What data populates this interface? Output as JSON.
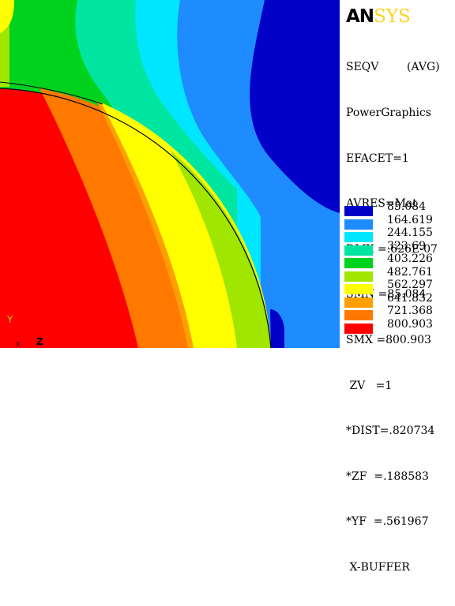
{
  "logo": {
    "brand_an": "AN",
    "brand_sys": "SYS"
  },
  "info_lines": [
    "SEQV        (AVG)",
    "PowerGraphics",
    "EFACET=1",
    "AVRES=Mat",
    "DMX =.626E-07",
    "SMN =85.084",
    "SMX =800.903"
  ],
  "view_lines": [
    " ZV   =1",
    "*DIST=.820734",
    "*ZF  =.188583",
    "*YF  =.561967",
    " X-BUFFER"
  ],
  "legend": [
    {
      "label": "85.084",
      "color": "#0000c8"
    },
    {
      "label": "164.619",
      "color": "#1e8cff"
    },
    {
      "label": "244.155",
      "color": "#00e6ff"
    },
    {
      "label": "323.69",
      "color": "#00e6a0"
    },
    {
      "label": "403.226",
      "color": "#00d21e"
    },
    {
      "label": "482.761",
      "color": "#a0e600"
    },
    {
      "label": "562.297",
      "color": "#ffff00"
    },
    {
      "label": "641.832",
      "color": "#ffa000"
    },
    {
      "label": "721.368",
      "color": "#ff7800"
    },
    {
      "label": "800.903",
      "color": "#ff0000"
    }
  ],
  "triad": {
    "y_label": "Y",
    "z_label": "Z",
    "x_label": "X"
  }
}
